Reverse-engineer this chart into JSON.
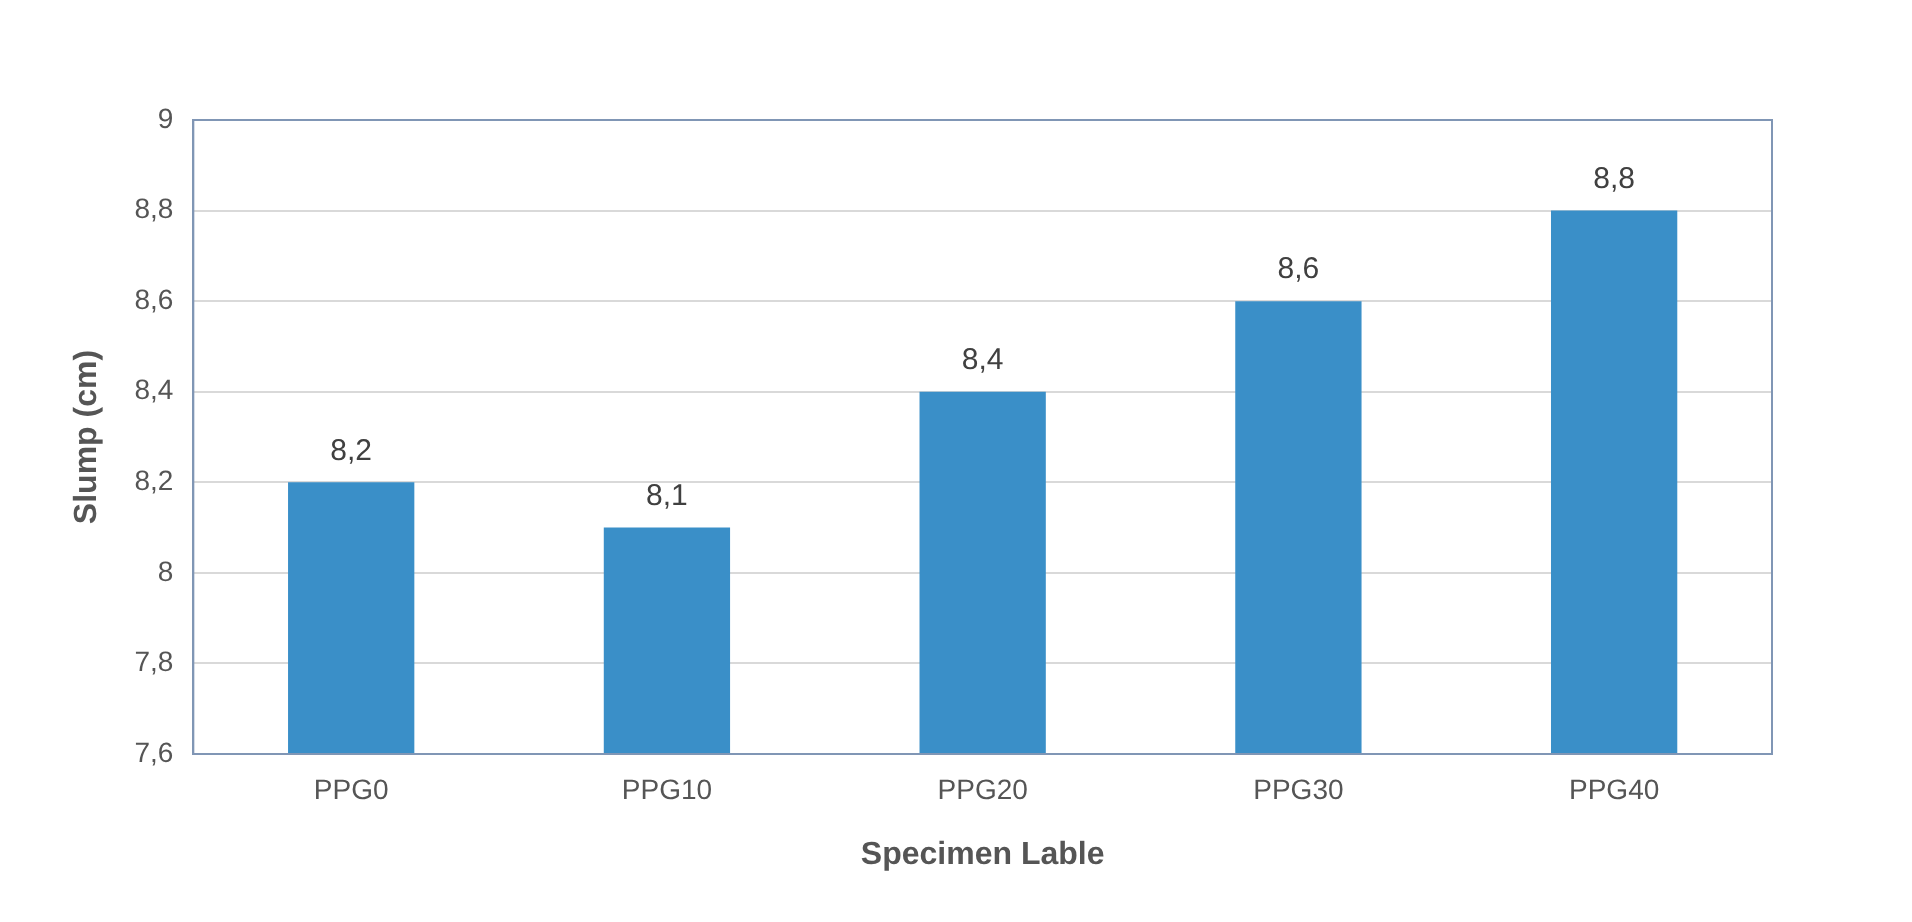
{
  "chart_data": {
    "type": "bar",
    "xlabel": "Specimen Lable",
    "ylabel": "Slump (cm)",
    "categories": [
      "PPG0",
      "PPG10",
      "PPG20",
      "PPG30",
      "PPG40"
    ],
    "values": [
      8.2,
      8.1,
      8.4,
      8.6,
      8.8
    ],
    "color": "#3a8fc8",
    "value_labels": [
      "8,2",
      "8,1",
      "8,4",
      "8,6",
      "8,8"
    ],
    "ylim": [
      7.6,
      9
    ],
    "yticks": [
      {
        "value": 7.6,
        "label": "7,6"
      },
      {
        "value": 7.8,
        "label": "7,8"
      },
      8,
      {
        "value": 8.2,
        "label": "8,2"
      },
      {
        "value": 8.4,
        "label": "8,4"
      },
      {
        "value": 8.6,
        "label": "8,6"
      },
      {
        "value": 8.8,
        "label": "8,8"
      },
      9
    ],
    "grid": "y",
    "legend": false
  }
}
